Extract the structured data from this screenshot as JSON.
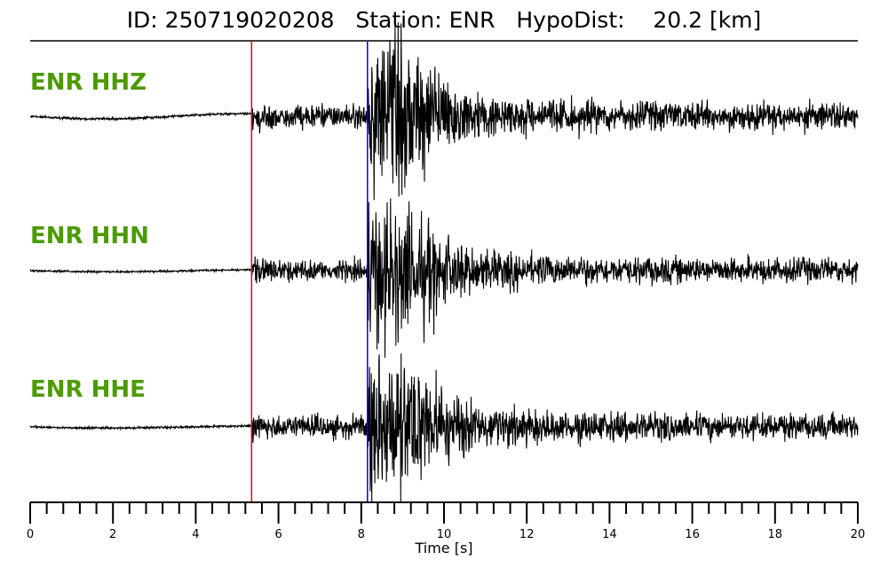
{
  "title": "ID: 250719020208   Station: ENR   HypoDist:    20.2 [km]",
  "chart_data": {
    "type": "line",
    "xlabel": "Time [s]",
    "xlim": [
      0,
      20
    ],
    "x_major_ticks": [
      0,
      2,
      4,
      6,
      8,
      10,
      12,
      14,
      16,
      18,
      20
    ],
    "x_minor_step": 0.4,
    "tick_labels": [
      "0",
      "2",
      "4",
      "6",
      "8",
      "10",
      "12",
      "14",
      "16",
      "18",
      "20"
    ],
    "picks": [
      {
        "phase": "P",
        "time": 5.35,
        "color": "#ff0000"
      },
      {
        "phase": "S",
        "time": 8.15,
        "color": "#0000ff"
      }
    ],
    "channels": [
      {
        "label": "ENR HHZ",
        "color": "#4c9a00",
        "peak_time": 8.8
      },
      {
        "label": "ENR HHN",
        "color": "#4c9a00",
        "peak_time": 8.7
      },
      {
        "label": "ENR HHE",
        "color": "#4c9a00",
        "peak_time": 8.8
      }
    ],
    "trace_color": "#000000"
  }
}
